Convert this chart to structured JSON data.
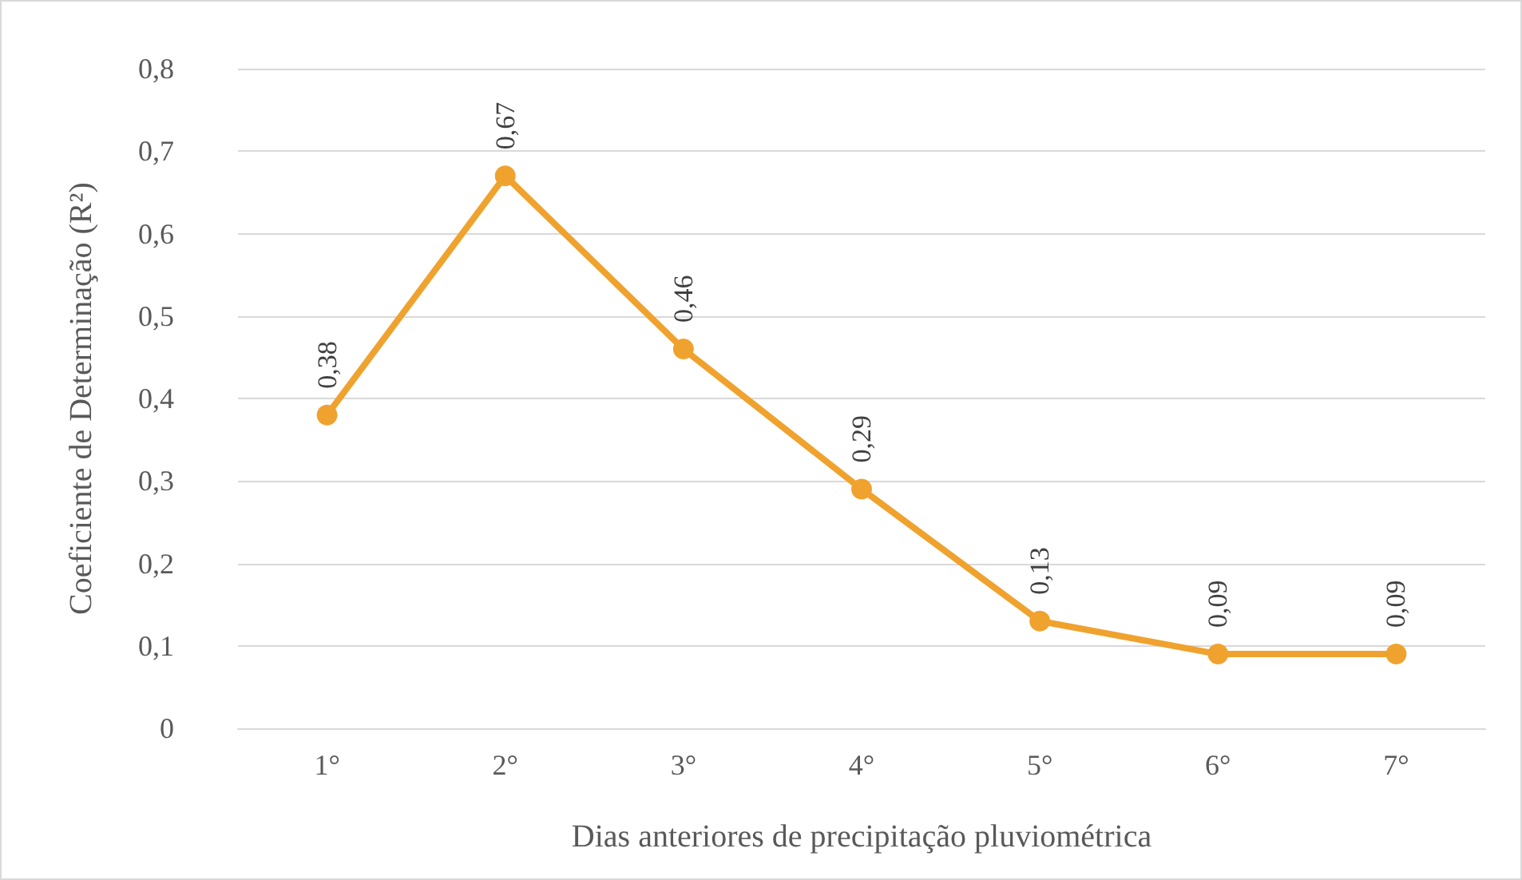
{
  "chart_data": {
    "type": "line",
    "xlabel": "Dias anteriores de precipitação pluviométrica",
    "ylabel": "Coeficiente de Determinação (R²)",
    "categories": [
      "1°",
      "2°",
      "3°",
      "4°",
      "5°",
      "6°",
      "7°"
    ],
    "series": [
      {
        "color": "#f0a22e",
        "values": [
          0.38,
          0.67,
          0.46,
          0.29,
          0.13,
          0.09,
          0.09
        ],
        "value_labels": [
          "0,38",
          "0,67",
          "0,46",
          "0,29",
          "0,13",
          "0,09",
          "0,09"
        ]
      }
    ],
    "ylim": [
      0,
      0.8
    ],
    "yticks": [
      {
        "value": 0,
        "label": "0"
      },
      {
        "value": 0.1,
        "label": "0,1"
      },
      {
        "value": 0.2,
        "label": "0,2"
      },
      {
        "value": 0.3,
        "label": "0,3"
      },
      {
        "value": 0.4,
        "label": "0,4"
      },
      {
        "value": 0.5,
        "label": "0,5"
      },
      {
        "value": 0.6,
        "label": "0,6"
      },
      {
        "value": 0.7,
        "label": "0,7"
      },
      {
        "value": 0.8,
        "label": "0,8"
      }
    ],
    "grid": "y",
    "marker": "circle",
    "line_style": "solid"
  }
}
